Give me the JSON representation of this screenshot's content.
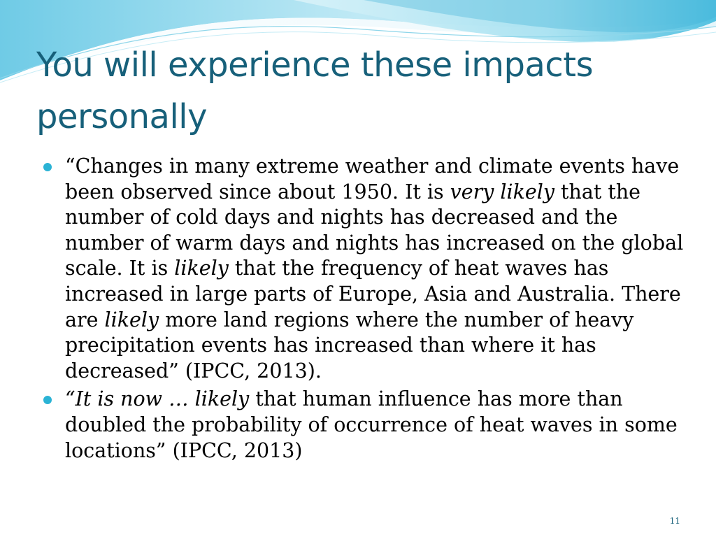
{
  "slide": {
    "title": "You will experience these impacts personally",
    "bullets": [
      {
        "segments": [
          {
            "text": "“Changes in many extreme weather and climate events have been observed since about 1950. It is ",
            "italic": false
          },
          {
            "text": "very likely",
            "italic": true
          },
          {
            "text": " that the number of cold days and nights has decreased and the number of warm days and nights has increased on the global scale. It is ",
            "italic": false
          },
          {
            "text": "likely",
            "italic": true
          },
          {
            "text": " that the frequency of heat waves has increased in large parts of Europe, Asia and Australia. There are ",
            "italic": false
          },
          {
            "text": "likely",
            "italic": true
          },
          {
            "text": " more land regions where the number of heavy precipitation events has increased than where it has decreased” (IPCC, 2013).",
            "italic": false
          }
        ]
      },
      {
        "segments": [
          {
            "text": "“It is now … ",
            "italic": true
          },
          {
            "text": "likely",
            "italic": true
          },
          {
            "text": " that human influence has more than doubled the probability of occurrence of heat waves in some locations” (IPCC, 2013)",
            "italic": false
          }
        ]
      }
    ],
    "page_number": "11"
  },
  "colors": {
    "title": "#17607a",
    "bullet_marker": "#2bb3d5",
    "wave_light": "#d6f1f8",
    "wave_mid": "#8fd6ea",
    "wave_dark": "#3fb3d6"
  }
}
